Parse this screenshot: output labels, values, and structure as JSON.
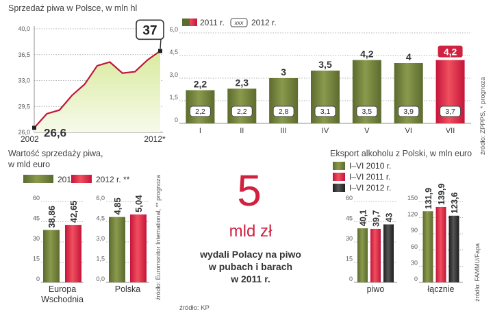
{
  "colors": {
    "olive_dark": "#5c6b2e",
    "olive_light": "#8a9a4c",
    "red_dark": "#c5143a",
    "red_light": "#f0505f",
    "black": "#222222",
    "line": "#c2143a",
    "area_fill": "#e7f1c7"
  },
  "chart_data": [
    {
      "id": "line-chart",
      "type": "area",
      "title": "Sprzedaż piwa w Polsce, w mln hl",
      "x": [
        "2002",
        "2003",
        "2004",
        "2005",
        "2006",
        "2007",
        "2008",
        "2009",
        "2010",
        "2011",
        "2012*"
      ],
      "values": [
        26.6,
        28.5,
        29.0,
        31.0,
        32.5,
        35.0,
        35.5,
        34.0,
        34.2,
        35.8,
        37.0
      ],
      "ylim": [
        26,
        40
      ],
      "yticks": [
        "26,0",
        "29,5",
        "33,0",
        "36,5",
        "40,0"
      ],
      "xtick_labels": [
        "2002",
        "2012*"
      ],
      "start_label": "26,6",
      "end_label": "37"
    },
    {
      "id": "monthly-chart",
      "type": "bar",
      "categories": [
        "I",
        "II",
        "III",
        "IV",
        "V",
        "VI",
        "VII"
      ],
      "series": [
        {
          "name": "2011 r.",
          "values": [
            2.2,
            2.3,
            3.0,
            3.5,
            4.2,
            4.0,
            4.2
          ],
          "labels": [
            "2,2",
            "2,3",
            "3",
            "3,5",
            "4,2",
            "4",
            "4,2"
          ]
        },
        {
          "name": "2012 r.",
          "values": [
            2.2,
            2.2,
            2.8,
            3.1,
            3.5,
            3.9,
            3.7
          ],
          "labels": [
            "2,2",
            "2,2",
            "2,8",
            "3,1",
            "3,5",
            "3,9",
            "3,7"
          ]
        }
      ],
      "ylim": [
        0,
        6
      ],
      "yticks": [
        "0",
        "1,5",
        "3,0",
        "4,5",
        "6,0"
      ],
      "legend": {
        "label_2011": "2011 r.",
        "box_text": "xxx",
        "label_2012": "2012 r."
      },
      "source": "źródło: ZPPPS, * prognoza"
    },
    {
      "id": "value-chart-europe",
      "type": "bar",
      "title": "Wartość sprzedaży piwa,\nw mld euro",
      "categories": [
        "Europa Wschodnia"
      ],
      "category_lines": [
        "Europa",
        "Wschodnia"
      ],
      "series": [
        {
          "name": "2011 r.",
          "values": [
            38.86
          ],
          "labels": [
            "38,86"
          ]
        },
        {
          "name": "2012 r. **",
          "values": [
            42.65
          ],
          "labels": [
            "42,65"
          ]
        }
      ],
      "ylim": [
        0,
        60
      ],
      "yticks": [
        "0",
        "15",
        "30",
        "45",
        "60"
      ]
    },
    {
      "id": "value-chart-poland",
      "type": "bar",
      "categories": [
        "Polska"
      ],
      "series": [
        {
          "name": "2011 r.",
          "values": [
            4.85
          ],
          "labels": [
            "4,85"
          ]
        },
        {
          "name": "2012 r. **",
          "values": [
            5.04
          ],
          "labels": [
            "5,04"
          ]
        }
      ],
      "ylim": [
        0,
        6
      ],
      "yticks": [
        "0,0",
        "1,5",
        "3,0",
        "4,5",
        "6,0"
      ],
      "source": "źródło: Euromonitor International, ** prognoza"
    },
    {
      "id": "export-chart-beer",
      "type": "bar",
      "title": "Eksport alkoholu z Polski, w mln euro",
      "categories": [
        "piwo"
      ],
      "series": [
        {
          "name": "I–VI 2010 r.",
          "values": [
            40.1
          ],
          "labels": [
            "40,1"
          ]
        },
        {
          "name": "I–VI 2011 r.",
          "values": [
            39.7
          ],
          "labels": [
            "39,7"
          ]
        },
        {
          "name": "I–VI 2012 r.",
          "values": [
            43
          ],
          "labels": [
            "43"
          ]
        }
      ],
      "ylim": [
        0,
        60
      ],
      "yticks": [
        "0",
        "15",
        "30",
        "45",
        "60"
      ]
    },
    {
      "id": "export-chart-total",
      "type": "bar",
      "categories": [
        "łącznie"
      ],
      "series": [
        {
          "name": "I–VI 2010 r.",
          "values": [
            131.9
          ],
          "labels": [
            "131,9"
          ]
        },
        {
          "name": "I–VI 2011 r.",
          "values": [
            139.9
          ],
          "labels": [
            "139,9"
          ]
        },
        {
          "name": "I–VI 2012 r.",
          "values": [
            123.6
          ],
          "labels": [
            "123,6"
          ]
        }
      ],
      "ylim": [
        0,
        150
      ],
      "yticks": [
        "0",
        "30",
        "60",
        "90",
        "120",
        "150"
      ],
      "source": "źródło: FAMMU/Fapa"
    }
  ],
  "callout": {
    "number": "5",
    "unit": "mld zł",
    "line1": "wydali Polacy na piwo",
    "line2": "w pubach i barach",
    "line3": "w 2011 r.",
    "source": "źródło: KP"
  }
}
